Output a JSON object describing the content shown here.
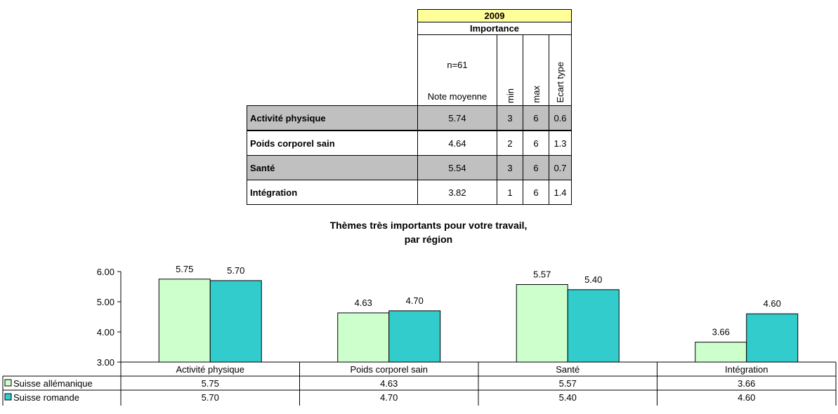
{
  "table": {
    "year": "2009",
    "importance_label": "Importance",
    "n_label": "n=61",
    "mean_label": "Note moyenne",
    "min_label": "min",
    "max_label": "max",
    "sd_label": "Ecart type",
    "rows": [
      {
        "label": "Activité physique",
        "mean": "5.74",
        "min": "3",
        "max": "6",
        "sd": "0.6"
      },
      {
        "label": "Poids corporel sain",
        "mean": "4.64",
        "min": "2",
        "max": "6",
        "sd": "1.3"
      },
      {
        "label": "Santé",
        "mean": "5.54",
        "min": "3",
        "max": "6",
        "sd": "0.7"
      },
      {
        "label": "Intégration",
        "mean": "3.82",
        "min": "1",
        "max": "6",
        "sd": "1.4"
      }
    ]
  },
  "chart_data": {
    "type": "bar",
    "title": "Thèmes très importants pour votre travail,",
    "subtitle": "par région",
    "categories": [
      "Activité physique",
      "Poids corporel sain",
      "Santé",
      "Intégration"
    ],
    "series": [
      {
        "name": "Suisse allémanique",
        "values": [
          5.75,
          4.63,
          5.57,
          3.66
        ],
        "labels": [
          "5.75",
          "4.63",
          "5.57",
          "3.66"
        ],
        "color": "#ccffcc"
      },
      {
        "name": "Suisse romande",
        "values": [
          5.7,
          4.7,
          5.4,
          4.6
        ],
        "labels": [
          "5.70",
          "4.70",
          "5.40",
          "4.60"
        ],
        "color": "#33cccc"
      }
    ],
    "ylim": [
      3.0,
      6.0
    ],
    "yticks": [
      "3.00",
      "4.00",
      "5.00",
      "6.00"
    ],
    "legend": "data-table-left",
    "grid": false
  }
}
